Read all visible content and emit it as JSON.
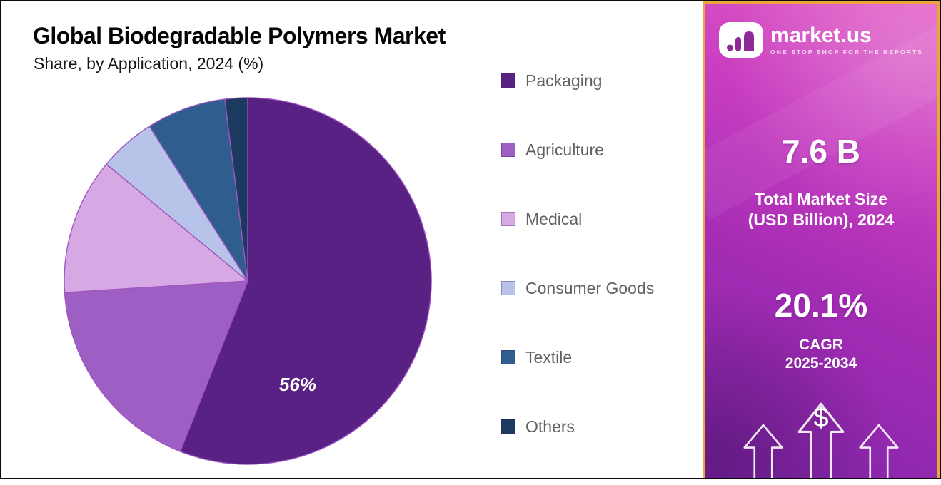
{
  "header": {
    "title": "Global Biodegradable Polymers Market",
    "subtitle": "Share, by Application, 2024 (%)"
  },
  "chart_data": {
    "type": "pie",
    "title": "Global Biodegradable Polymers Market",
    "subtitle": "Share, by Application, 2024 (%)",
    "year": "2024",
    "unit": "%",
    "direction": "clockwise",
    "start": "top",
    "legend_position": "right",
    "slice_stroke": "#a055c0",
    "slices": [
      {
        "label": "Packaging",
        "value": 56,
        "color": "#5a2185"
      },
      {
        "label": "Agriculture",
        "value": 18,
        "color": "#9e5fc5"
      },
      {
        "label": "Medical",
        "value": 12,
        "color": "#d7a9e4"
      },
      {
        "label": "Consumer Goods",
        "value": 5,
        "color": "#b7c3e9"
      },
      {
        "label": "Textile",
        "value": 7,
        "color": "#2f5d8e"
      },
      {
        "label": "Others",
        "value": 2,
        "color": "#1c3a60"
      }
    ],
    "shown_label": {
      "slice": "Packaging",
      "text": "56%"
    }
  },
  "panel": {
    "brand": {
      "name": "market.us",
      "tagline": "ONE STOP SHOP FOR THE REPORTS"
    },
    "market_size_value": "7.6 B",
    "market_size_label_line1": "Total Market Size",
    "market_size_label_line2": "(USD Billion), 2024",
    "cagr_value": "20.1%",
    "cagr_label_line1": "CAGR",
    "cagr_label_line2": "2025-2034",
    "currency_symbol": "$",
    "colors": {
      "gradient_top": "#e25ec6",
      "gradient_bottom": "#8226a9",
      "border": "#eda43e"
    }
  }
}
